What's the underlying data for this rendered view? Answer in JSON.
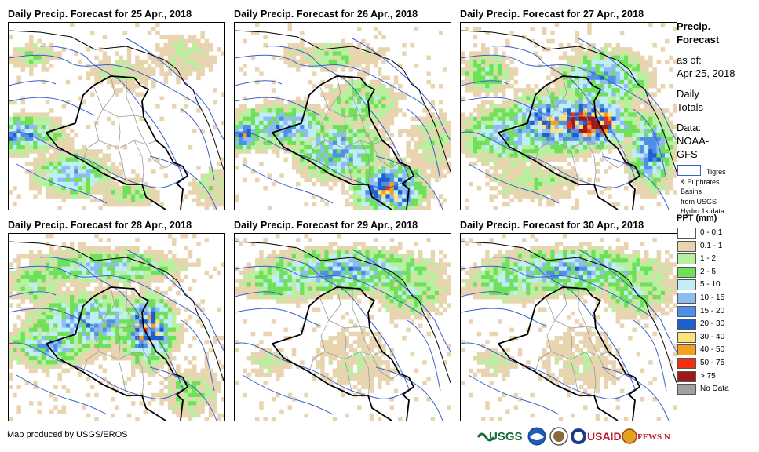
{
  "panels": [
    {
      "title": "Daily Precip. Forecast for 25 Apr., 2018",
      "intensity": "low-west"
    },
    {
      "title": "Daily Precip. Forecast for 26 Apr., 2018",
      "intensity": "south-heavy"
    },
    {
      "title": "Daily Precip. Forecast for 27 Apr., 2018",
      "intensity": "northeast-extreme"
    },
    {
      "title": "Daily Precip. Forecast for 28 Apr., 2018",
      "intensity": "east-moderate"
    },
    {
      "title": "Daily Precip. Forecast for 29 Apr., 2018",
      "intensity": "north-light"
    },
    {
      "title": "Daily Precip. Forecast for 30 Apr., 2018",
      "intensity": "north-light"
    }
  ],
  "sidebar": {
    "title_line1": "Precip.",
    "title_line2": "Forecast",
    "asof_line1": "as of:",
    "asof_line2": "Apr 25, 2018",
    "daily_line1": "Daily",
    "daily_line2": "Totals",
    "data_line1": "Data:",
    "data_line2": "NOAA-",
    "data_line3": "GFS",
    "basin_line1": "Tigres",
    "basin_line2": "& Euphrates",
    "basin_line3": "Basins",
    "basin_line4": "from USGS",
    "basin_line5": "Hydro 1k data",
    "ppt_title": "PPT (mm)"
  },
  "legend": [
    {
      "label": "0 - 0.1",
      "color": "#ffffff"
    },
    {
      "label": "0.1 - 1",
      "color": "#e8d5b0"
    },
    {
      "label": "1 - 2",
      "color": "#b9f0a0"
    },
    {
      "label": "2 - 5",
      "color": "#6fe05a"
    },
    {
      "label": "5 - 10",
      "color": "#bfeef5"
    },
    {
      "label": "10 - 15",
      "color": "#8fbcf0"
    },
    {
      "label": "15 - 20",
      "color": "#4f8fe8"
    },
    {
      "label": "20 - 30",
      "color": "#1f5fd0"
    },
    {
      "label": "30 - 40",
      "color": "#fde27a"
    },
    {
      "label": "40 - 50",
      "color": "#f5a020"
    },
    {
      "label": "50 - 75",
      "color": "#f03010"
    },
    {
      "label": "> 75",
      "color": "#a01818"
    },
    {
      "label": "No Data",
      "color": "#a0a0a0"
    }
  ],
  "credit": "Map produced by USGS/EROS",
  "logos": [
    "USGS",
    "NOAA",
    "DOI",
    "USAID",
    "FEWS NET"
  ],
  "colors": {
    "basin": "#3a5fcd",
    "border": "#000000",
    "provinces": "#9a9a9a"
  }
}
